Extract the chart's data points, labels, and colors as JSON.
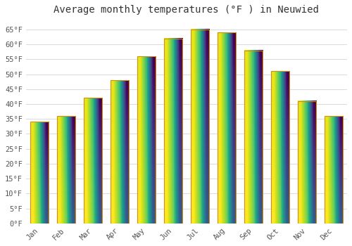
{
  "title": "Average monthly temperatures (°F ) in Neuwied",
  "months": [
    "Jan",
    "Feb",
    "Mar",
    "Apr",
    "May",
    "Jun",
    "Jul",
    "Aug",
    "Sep",
    "Oct",
    "Nov",
    "Dec"
  ],
  "values": [
    34,
    36,
    42,
    48,
    56,
    62,
    65,
    64,
    58,
    51,
    41,
    36
  ],
  "bar_color_top": "#FFC84A",
  "bar_color_bottom": "#F5A800",
  "bar_edge_color": "#D4900A",
  "background_color": "#ffffff",
  "plot_bg_color": "#ffffff",
  "grid_color": "#dddddd",
  "ylim": [
    0,
    68
  ],
  "yticks": [
    0,
    5,
    10,
    15,
    20,
    25,
    30,
    35,
    40,
    45,
    50,
    55,
    60,
    65
  ],
  "ytick_labels": [
    "0°F",
    "5°F",
    "10°F",
    "15°F",
    "20°F",
    "25°F",
    "30°F",
    "35°F",
    "40°F",
    "45°F",
    "50°F",
    "55°F",
    "60°F",
    "65°F"
  ],
  "title_fontsize": 10,
  "tick_fontsize": 7.5,
  "tick_font_color": "#555555",
  "title_color": "#333333"
}
